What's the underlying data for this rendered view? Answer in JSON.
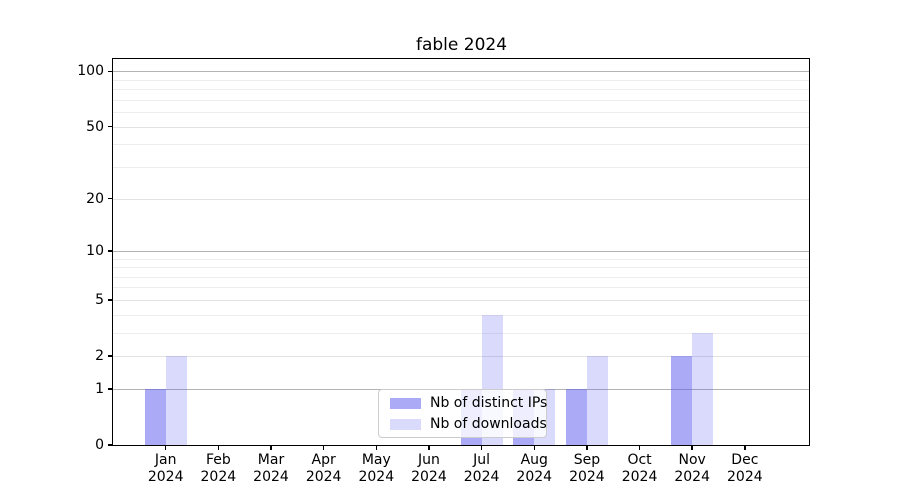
{
  "title": "fable 2024",
  "chart_data": {
    "type": "bar",
    "title": "fable 2024",
    "categories": [
      "Jan",
      "Feb",
      "Mar",
      "Apr",
      "May",
      "Jun",
      "Jul",
      "Aug",
      "Sep",
      "Oct",
      "Nov",
      "Dec"
    ],
    "year": "2024",
    "series": [
      {
        "name": "Nb of distinct IPs",
        "values": [
          1,
          0,
          0,
          0,
          0,
          0,
          1,
          1,
          1,
          0,
          2,
          0
        ],
        "color": "#a9a9f8",
        "fill": "rgba(85,85,240,0.5)"
      },
      {
        "name": "Nb of downloads",
        "values": [
          2,
          0,
          0,
          0,
          0,
          0,
          4,
          1,
          2,
          0,
          3,
          0
        ],
        "color": "#dadafc",
        "fill": "rgba(85,85,240,0.22)"
      }
    ],
    "xlabel": "",
    "ylabel": "",
    "yscale": "log1p",
    "ylim": [
      0,
      117
    ],
    "ytick_values": [
      0,
      1,
      2,
      5,
      10,
      20,
      50,
      100
    ],
    "ytick_labels": [
      "0",
      "1",
      "2",
      "5",
      "10",
      "20",
      "50",
      "100"
    ],
    "grid_major_decades": [
      1,
      10,
      100
    ],
    "grid_major_other": [
      2,
      5,
      20,
      50
    ],
    "grid_minor": [
      3,
      4,
      6,
      7,
      8,
      9,
      30,
      40,
      60,
      70,
      80,
      90
    ],
    "grid": "horizontal, on",
    "legend_position": "lower center"
  },
  "colors": {
    "bars_distinct_ips": "#a9a9f8",
    "bars_downloads": "#dadafc",
    "grid_decade": "#b3b3b3",
    "grid_light": "#e2e2e2",
    "grid_minor": "#ededed",
    "spine": "#000000",
    "legend_border": "#cccccc"
  }
}
